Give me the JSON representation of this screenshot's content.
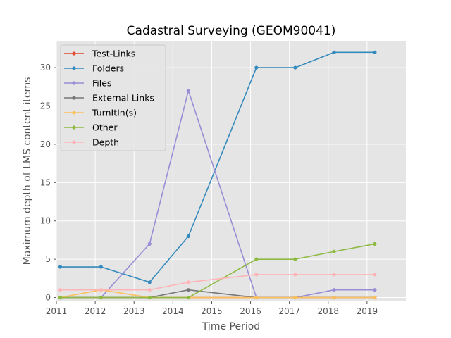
{
  "chart_data": {
    "type": "line",
    "title": "Cadastral Surveying (GEOM90041)",
    "xlabel": "Time Period",
    "ylabel": "Maximum depth of LMS content items",
    "xlim": [
      2011,
      2020
    ],
    "ylim": [
      -0.5,
      33.5
    ],
    "x_ticks": [
      "2011",
      "2012",
      "2013",
      "2014",
      "2015",
      "2016",
      "2017",
      "2018",
      "2019"
    ],
    "y_ticks": [
      "0",
      "5",
      "10",
      "15",
      "20",
      "25",
      "30"
    ],
    "grid": true,
    "legend_position": "upper-left",
    "series": [
      {
        "name": "Test-Links",
        "color": "#e24a33",
        "x": [
          2011.1,
          2012.15,
          2013.4,
          2014.4,
          2016.15,
          2017.15,
          2018.15,
          2019.2
        ],
        "values": [
          0,
          0,
          0,
          0,
          0,
          0,
          0,
          0
        ]
      },
      {
        "name": "Folders",
        "color": "#348abd",
        "x": [
          2011.1,
          2012.15,
          2013.4,
          2014.4,
          2016.15,
          2017.15,
          2018.15,
          2019.2
        ],
        "values": [
          4,
          4,
          2,
          8,
          30,
          30,
          32,
          32
        ]
      },
      {
        "name": "Files",
        "color": "#988ed5",
        "x": [
          2011.1,
          2012.15,
          2013.4,
          2014.4,
          2016.15,
          2017.15,
          2018.15,
          2019.2
        ],
        "values": [
          0,
          0,
          7,
          27,
          0,
          0,
          1,
          1
        ]
      },
      {
        "name": "External Links",
        "color": "#777777",
        "x": [
          2011.1,
          2012.15,
          2013.4,
          2014.4,
          2016.15,
          2017.15,
          2018.15,
          2019.2
        ],
        "values": [
          0,
          0,
          0,
          1,
          0,
          0,
          0,
          0
        ]
      },
      {
        "name": "TurnItIn(s)",
        "color": "#fbc15e",
        "x": [
          2011.1,
          2012.15,
          2013.4,
          2014.4,
          2016.15,
          2017.15,
          2018.15,
          2019.2
        ],
        "values": [
          0,
          1,
          0,
          0,
          0,
          0,
          0,
          0
        ]
      },
      {
        "name": "Other",
        "color": "#8eba42",
        "x": [
          2011.1,
          2012.15,
          2013.4,
          2014.4,
          2016.15,
          2017.15,
          2018.15,
          2019.2
        ],
        "values": [
          0,
          0,
          0,
          0,
          5,
          5,
          6,
          7
        ]
      },
      {
        "name": "Depth",
        "color": "#ffb5b8",
        "x": [
          2011.1,
          2012.15,
          2013.4,
          2014.4,
          2016.15,
          2017.15,
          2018.15,
          2019.2
        ],
        "values": [
          1,
          1,
          1,
          2,
          3,
          3,
          3,
          3
        ]
      }
    ]
  }
}
